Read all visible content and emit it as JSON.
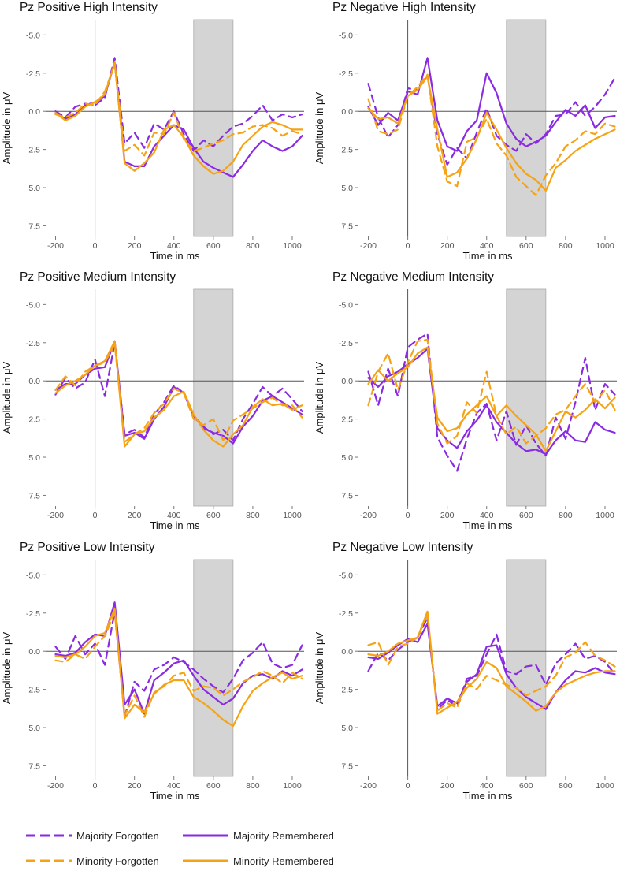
{
  "colors": {
    "majority": "#8a2be2",
    "minority": "#f5a315",
    "shade": "#d4d4d4",
    "axis": "#555555"
  },
  "legend": {
    "items": [
      {
        "label": "Majority Forgotten",
        "series": "majority",
        "dash": true
      },
      {
        "label": "Majority Remembered",
        "series": "majority",
        "dash": false
      },
      {
        "label": "Minority Forgotten",
        "series": "minority",
        "dash": true
      },
      {
        "label": "Minority Remembered",
        "series": "minority",
        "dash": false
      }
    ]
  },
  "chart_data": [
    {
      "type": "line",
      "title": "Pz Positive High Intensity",
      "xlabel": "Time in ms",
      "ylabel": "Amplitude in μV",
      "xlim": [
        -250,
        1060
      ],
      "ylim": [
        -6.0,
        8.2
      ],
      "y_inverted": true,
      "x_ticks": [
        "-200",
        "0",
        "200",
        "400",
        "600",
        "800",
        "1000"
      ],
      "y_ticks": [
        "-5.0",
        "-2.5",
        "0.0",
        "2.5",
        "5.0",
        "7.5"
      ],
      "shaded_window": [
        500,
        700
      ],
      "x": [
        -200,
        -150,
        -100,
        -50,
        0,
        50,
        100,
        150,
        200,
        250,
        300,
        350,
        400,
        450,
        500,
        550,
        600,
        650,
        700,
        750,
        800,
        850,
        900,
        950,
        1000,
        1050
      ],
      "series": [
        {
          "name": "Majority Forgotten",
          "values": [
            0,
            0.4,
            -0.3,
            -0.5,
            -0.4,
            -0.9,
            -3.5,
            2.1,
            1.4,
            2.4,
            0.8,
            1.2,
            0,
            1.5,
            2.6,
            1.9,
            2.3,
            1.6,
            1.0,
            0.8,
            0.3,
            -0.4,
            0.6,
            0.2,
            0.4,
            0.2
          ]
        },
        {
          "name": "Majority Remembered",
          "values": [
            0.1,
            0.5,
            0.2,
            -0.4,
            -0.6,
            -1.0,
            -3.2,
            3.3,
            3.6,
            3.6,
            2.3,
            1.6,
            0.9,
            1.2,
            2.4,
            3.3,
            3.7,
            4.0,
            4.3,
            3.5,
            2.6,
            1.9,
            2.3,
            2.6,
            2.3,
            1.6
          ]
        },
        {
          "name": "Minority Forgotten",
          "values": [
            0.2,
            0.4,
            0.1,
            -0.5,
            -0.4,
            -1.3,
            -3.1,
            2.6,
            2.2,
            2.9,
            1.4,
            1.5,
            0.1,
            1.8,
            2.6,
            2.4,
            2.1,
            1.9,
            1.5,
            1.4,
            1.0,
            0.9,
            1.1,
            1.6,
            1.3,
            1.5
          ]
        },
        {
          "name": "Minority Remembered",
          "values": [
            0.1,
            0.6,
            0.3,
            -0.3,
            -0.6,
            -1.1,
            -3.2,
            3.4,
            3.9,
            3.4,
            2.7,
            1.2,
            0.9,
            1.7,
            2.9,
            3.6,
            4.1,
            3.9,
            3.3,
            2.2,
            1.6,
            1.0,
            0.7,
            0.9,
            1.2,
            1.2
          ]
        }
      ]
    },
    {
      "type": "line",
      "title": "Pz Negative High Intensity",
      "xlabel": "Time in ms",
      "ylabel": "Amplitude in μV",
      "xlim": [
        -250,
        1060
      ],
      "ylim": [
        -6.0,
        8.2
      ],
      "y_inverted": true,
      "x_ticks": [
        "-200",
        "0",
        "200",
        "400",
        "600",
        "800",
        "1000"
      ],
      "y_ticks": [
        "-5.0",
        "-2.5",
        "0.0",
        "2.5",
        "5.0",
        "7.5"
      ],
      "shaded_window": [
        500,
        700
      ],
      "x": [
        -200,
        -150,
        -100,
        -50,
        0,
        50,
        100,
        150,
        200,
        250,
        300,
        350,
        400,
        450,
        500,
        550,
        600,
        650,
        700,
        750,
        800,
        850,
        900,
        950,
        1000,
        1050
      ],
      "series": [
        {
          "name": "Majority Forgotten",
          "values": [
            -1.8,
            0.4,
            1.7,
            0.9,
            -1.5,
            -1.4,
            -2.3,
            1.5,
            3.5,
            2.4,
            3.1,
            1.4,
            -0.2,
            1.6,
            2.2,
            2.6,
            1.5,
            2.1,
            1.5,
            0.3,
            0.2,
            -0.6,
            0.3,
            -0.3,
            -1.1,
            -2.2
          ]
        },
        {
          "name": "Majority Remembered",
          "values": [
            -0.3,
            0.9,
            0.1,
            0.6,
            -1.3,
            -1.1,
            -3.5,
            0.6,
            2.3,
            2.6,
            1.3,
            0.6,
            -2.5,
            -1.2,
            0.8,
            1.8,
            2.3,
            2.0,
            1.6,
            0.7,
            -0.1,
            0.3,
            -0.4,
            1.1,
            0.4,
            0.3
          ]
        },
        {
          "name": "Minority Forgotten",
          "values": [
            -0.8,
            1.3,
            1.5,
            1.2,
            -1.0,
            -1.6,
            -2.4,
            2.3,
            4.6,
            4.9,
            2.0,
            1.7,
            0.5,
            2.1,
            2.9,
            4.3,
            4.9,
            5.5,
            4.2,
            3.4,
            2.3,
            1.9,
            1.3,
            1.5,
            0.8,
            1.0
          ]
        },
        {
          "name": "Minority Remembered",
          "values": [
            -0.2,
            0.5,
            0.4,
            0.8,
            -1.0,
            -1.4,
            -2.3,
            1.2,
            4.3,
            4.0,
            3.1,
            1.8,
            0.1,
            1.2,
            2.4,
            3.4,
            4.1,
            4.5,
            5.2,
            3.7,
            3.2,
            2.6,
            2.2,
            1.8,
            1.5,
            1.2
          ]
        }
      ]
    },
    {
      "type": "line",
      "title": "Pz Positive Medium Intensity",
      "xlabel": "Time in ms",
      "ylabel": "Amplitude in μV",
      "xlim": [
        -250,
        1060
      ],
      "ylim": [
        -6.0,
        8.2
      ],
      "y_inverted": true,
      "x_ticks": [
        "-200",
        "0",
        "200",
        "400",
        "600",
        "800",
        "1000"
      ],
      "y_ticks": [
        "-5.0",
        "-2.5",
        "0.0",
        "2.5",
        "5.0",
        "7.5"
      ],
      "shaded_window": [
        500,
        700
      ],
      "x": [
        -200,
        -150,
        -100,
        -50,
        0,
        50,
        100,
        150,
        200,
        250,
        300,
        350,
        400,
        450,
        500,
        550,
        600,
        650,
        700,
        750,
        800,
        850,
        900,
        950,
        1000,
        1050
      ],
      "series": [
        {
          "name": "Majority Forgotten",
          "values": [
            0.9,
            -0.2,
            0.5,
            0.1,
            -1.4,
            1.0,
            -2.5,
            3.5,
            3.2,
            3.7,
            2.2,
            1.4,
            0.3,
            0.8,
            2.3,
            3.0,
            3.5,
            3.2,
            3.9,
            2.5,
            1.5,
            0.4,
            1.0,
            0.5,
            1.2,
            2.0
          ]
        },
        {
          "name": "Majority Remembered",
          "values": [
            0.6,
            0.2,
            0.2,
            -0.4,
            -0.8,
            -0.9,
            -2.6,
            3.6,
            3.4,
            3.8,
            2.5,
            1.7,
            0.4,
            0.8,
            2.3,
            3.1,
            3.4,
            3.6,
            4.1,
            3.0,
            2.3,
            1.3,
            1.0,
            1.4,
            1.8,
            2.2
          ]
        },
        {
          "name": "Minority Forgotten",
          "values": [
            0.6,
            -0.3,
            0.3,
            -0.6,
            -1.0,
            -1.2,
            -2.4,
            4.0,
            3.5,
            3.1,
            2.1,
            1.5,
            0.5,
            0.8,
            2.5,
            2.9,
            2.5,
            3.9,
            2.6,
            2.2,
            1.8,
            1.4,
            1.1,
            1.6,
            1.6,
            2.4
          ]
        },
        {
          "name": "Minority Remembered",
          "values": [
            0.8,
            0.3,
            0.0,
            -0.4,
            -1.0,
            -1.3,
            -2.6,
            4.3,
            3.5,
            3.3,
            2.4,
            1.9,
            1.0,
            0.7,
            2.2,
            3.2,
            3.9,
            4.3,
            3.5,
            2.9,
            1.7,
            1.2,
            1.6,
            1.5,
            1.9,
            1.6
          ]
        }
      ]
    },
    {
      "type": "line",
      "title": "Pz Negative Medium Intensity",
      "xlabel": "Time in ms",
      "ylabel": "Amplitude in μV",
      "xlim": [
        -250,
        1060
      ],
      "ylim": [
        -6.0,
        8.2
      ],
      "y_inverted": true,
      "x_ticks": [
        "-200",
        "0",
        "200",
        "400",
        "600",
        "800",
        "1000"
      ],
      "y_ticks": [
        "-5.0",
        "-2.5",
        "0.0",
        "2.5",
        "5.0",
        "7.5"
      ],
      "shaded_window": [
        500,
        700
      ],
      "x": [
        -200,
        -150,
        -100,
        -50,
        0,
        50,
        100,
        150,
        200,
        250,
        300,
        350,
        400,
        450,
        500,
        550,
        600,
        650,
        700,
        750,
        800,
        850,
        900,
        950,
        1000,
        1050
      ],
      "series": [
        {
          "name": "Majority Forgotten",
          "values": [
            -0.6,
            1.6,
            -0.8,
            1.0,
            -2.2,
            -2.7,
            -3.1,
            3.7,
            4.9,
            5.9,
            3.8,
            2.1,
            1.5,
            3.9,
            2.0,
            4.2,
            2.9,
            4.1,
            4.9,
            2.4,
            3.8,
            1.4,
            -1.5,
            1.9,
            0.2,
            0.9
          ]
        },
        {
          "name": "Majority Remembered",
          "values": [
            -0.2,
            0.4,
            -0.3,
            -0.6,
            -1.1,
            -1.5,
            -2.1,
            3.1,
            3.9,
            4.4,
            3.3,
            2.6,
            1.6,
            2.7,
            3.4,
            4.1,
            4.6,
            4.5,
            4.8,
            3.9,
            3.3,
            3.9,
            4.0,
            2.7,
            3.2,
            3.4
          ]
        },
        {
          "name": "Minority Forgotten",
          "values": [
            1.6,
            -0.6,
            -1.8,
            0.6,
            -1.2,
            -2.6,
            -2.7,
            2.8,
            4.1,
            3.6,
            1.4,
            2.1,
            -0.6,
            2.3,
            3.5,
            3.0,
            4.1,
            3.6,
            3.1,
            2.2,
            1.9,
            1.0,
            0.2,
            1.4,
            0.6,
            1.9
          ]
        },
        {
          "name": "Minority Remembered",
          "values": [
            0.2,
            -0.7,
            0.0,
            -0.5,
            -0.9,
            -1.8,
            -2.2,
            2.4,
            3.3,
            3.1,
            2.2,
            1.6,
            1.0,
            2.3,
            1.6,
            2.3,
            2.9,
            3.5,
            4.6,
            3.3,
            2.0,
            2.4,
            1.9,
            1.2,
            1.8,
            1.1
          ]
        }
      ]
    },
    {
      "type": "line",
      "title": "Pz Positive Low Intensity",
      "xlabel": "Time in ms",
      "ylabel": "Amplitude in μV",
      "xlim": [
        -250,
        1060
      ],
      "ylim": [
        -6.0,
        8.2
      ],
      "y_inverted": true,
      "x_ticks": [
        "-200",
        "0",
        "200",
        "400",
        "600",
        "800",
        "1000"
      ],
      "y_ticks": [
        "-5.0",
        "-2.5",
        "0.0",
        "2.5",
        "5.0",
        "7.5"
      ],
      "shaded_window": [
        500,
        700
      ],
      "x": [
        -200,
        -150,
        -100,
        -50,
        0,
        50,
        100,
        150,
        200,
        250,
        300,
        350,
        400,
        450,
        500,
        550,
        600,
        650,
        700,
        750,
        800,
        850,
        900,
        950,
        1000,
        1050
      ],
      "series": [
        {
          "name": "Majority Forgotten",
          "values": [
            -0.3,
            0.5,
            -1.0,
            0.2,
            -0.5,
            0.9,
            -2.6,
            4.3,
            2.0,
            2.6,
            1.2,
            0.9,
            0.4,
            0.7,
            1.2,
            1.8,
            2.3,
            2.7,
            1.8,
            0.6,
            0.1,
            -0.6,
            0.8,
            1.1,
            0.9,
            -0.4
          ]
        },
        {
          "name": "Majority Remembered",
          "values": [
            0.2,
            0.3,
            0.1,
            -0.6,
            -1.1,
            -1.0,
            -3.2,
            3.5,
            2.5,
            4.1,
            1.9,
            1.4,
            0.8,
            0.6,
            1.6,
            2.5,
            3.0,
            3.5,
            3.1,
            2.1,
            1.6,
            1.5,
            1.8,
            1.3,
            1.6,
            1.2
          ]
        },
        {
          "name": "Minority Forgotten",
          "values": [
            0.6,
            0.7,
            0.2,
            0.5,
            -0.3,
            -1.0,
            -2.5,
            4.2,
            2.9,
            4.3,
            2.7,
            2.3,
            1.6,
            1.4,
            2.6,
            2.3,
            2.4,
            2.9,
            2.5,
            2.0,
            1.7,
            1.3,
            1.6,
            2.1,
            1.4,
            1.8
          ]
        },
        {
          "name": "Minority Remembered",
          "values": [
            0.3,
            0.4,
            0.2,
            -0.3,
            -1.0,
            -1.2,
            -2.8,
            4.4,
            3.5,
            4.0,
            2.8,
            2.2,
            1.9,
            1.9,
            3.0,
            3.4,
            3.9,
            4.5,
            4.9,
            3.6,
            2.6,
            2.1,
            1.7,
            1.4,
            1.8,
            1.6
          ]
        }
      ]
    },
    {
      "type": "line",
      "title": "Pz Negative Low Intensity",
      "xlabel": "Time in ms",
      "ylabel": "Amplitude in μV",
      "xlim": [
        -250,
        1060
      ],
      "ylim": [
        -6.0,
        8.2
      ],
      "y_inverted": true,
      "x_ticks": [
        "-200",
        "0",
        "200",
        "400",
        "600",
        "800",
        "1000"
      ],
      "y_ticks": [
        "-5.0",
        "-2.5",
        "0.0",
        "2.5",
        "5.0",
        "7.5"
      ],
      "shaded_window": [
        500,
        700
      ],
      "x": [
        -200,
        -150,
        -100,
        -50,
        0,
        50,
        100,
        150,
        200,
        250,
        300,
        350,
        400,
        450,
        500,
        550,
        600,
        650,
        700,
        750,
        800,
        850,
        900,
        950,
        1000,
        1050
      ],
      "series": [
        {
          "name": "Majority Forgotten",
          "values": [
            1.3,
            0.1,
            0.6,
            -0.1,
            -0.6,
            -0.9,
            -2.2,
            3.8,
            3.2,
            3.6,
            1.8,
            1.6,
            0.2,
            -1.1,
            1.3,
            1.5,
            1.0,
            0.9,
            2.2,
            0.8,
            0.2,
            -0.5,
            0.5,
            0.3,
            0.7,
            1.5
          ]
        },
        {
          "name": "Majority Remembered",
          "values": [
            0.4,
            0.5,
            0.1,
            -0.4,
            -0.8,
            -0.6,
            -1.8,
            3.6,
            3.1,
            3.4,
            2.0,
            1.5,
            -0.3,
            -0.4,
            1.5,
            2.4,
            3.0,
            3.4,
            3.8,
            2.7,
            1.9,
            1.3,
            1.4,
            1.1,
            1.4,
            1.5
          ]
        },
        {
          "name": "Minority Forgotten",
          "values": [
            -0.4,
            -0.6,
            0.9,
            -0.3,
            -0.5,
            -0.9,
            -2.4,
            3.9,
            3.4,
            3.7,
            2.1,
            2.5,
            1.6,
            1.9,
            2.2,
            2.4,
            2.9,
            2.6,
            2.3,
            1.6,
            0.4,
            0.1,
            -0.6,
            0.3,
            0.6,
            1.0
          ]
        },
        {
          "name": "Minority Remembered",
          "values": [
            0.2,
            0.3,
            0.0,
            -0.5,
            -0.7,
            -0.9,
            -2.6,
            4.1,
            3.7,
            3.3,
            2.4,
            1.8,
            0.7,
            1.1,
            2.3,
            2.8,
            3.3,
            3.9,
            3.6,
            2.7,
            2.2,
            1.9,
            1.6,
            1.4,
            1.3,
            1.3
          ]
        }
      ]
    }
  ]
}
